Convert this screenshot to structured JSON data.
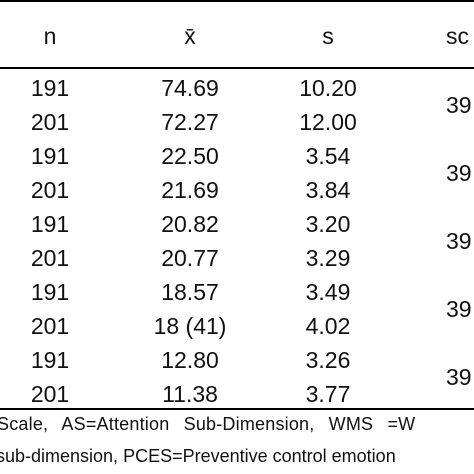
{
  "header": {
    "n": "n",
    "mean": "x̄",
    "s": "s",
    "score": "sc"
  },
  "rows": [
    {
      "n": "191",
      "mean": "74.69",
      "s": "10.20"
    },
    {
      "n": "201",
      "mean": "72.27",
      "s": "12.00"
    },
    {
      "n": "191",
      "mean": "22.50",
      "s": "3.54"
    },
    {
      "n": "201",
      "mean": "21.69",
      "s": "3.84"
    },
    {
      "n": "191",
      "mean": "20.82",
      "s": "3.20"
    },
    {
      "n": "201",
      "mean": "20.77",
      "s": "3.29"
    },
    {
      "n": "191",
      "mean": "18.57",
      "s": "3.49"
    },
    {
      "n": "201",
      "mean": "18 (41)",
      "s": "4.02"
    },
    {
      "n": "191",
      "mean": "12.80",
      "s": "3.26"
    },
    {
      "n": "201",
      "mean": "11.38",
      "s": "3.77"
    }
  ],
  "score_values": [
    "39",
    "39",
    "39",
    "39",
    "39"
  ],
  "notes": {
    "line1": "Scale,  AS=Attention  Sub-Dimension,  WMS  =W",
    "line2": "sub-dimension, PCES=Preventive control emotion"
  }
}
